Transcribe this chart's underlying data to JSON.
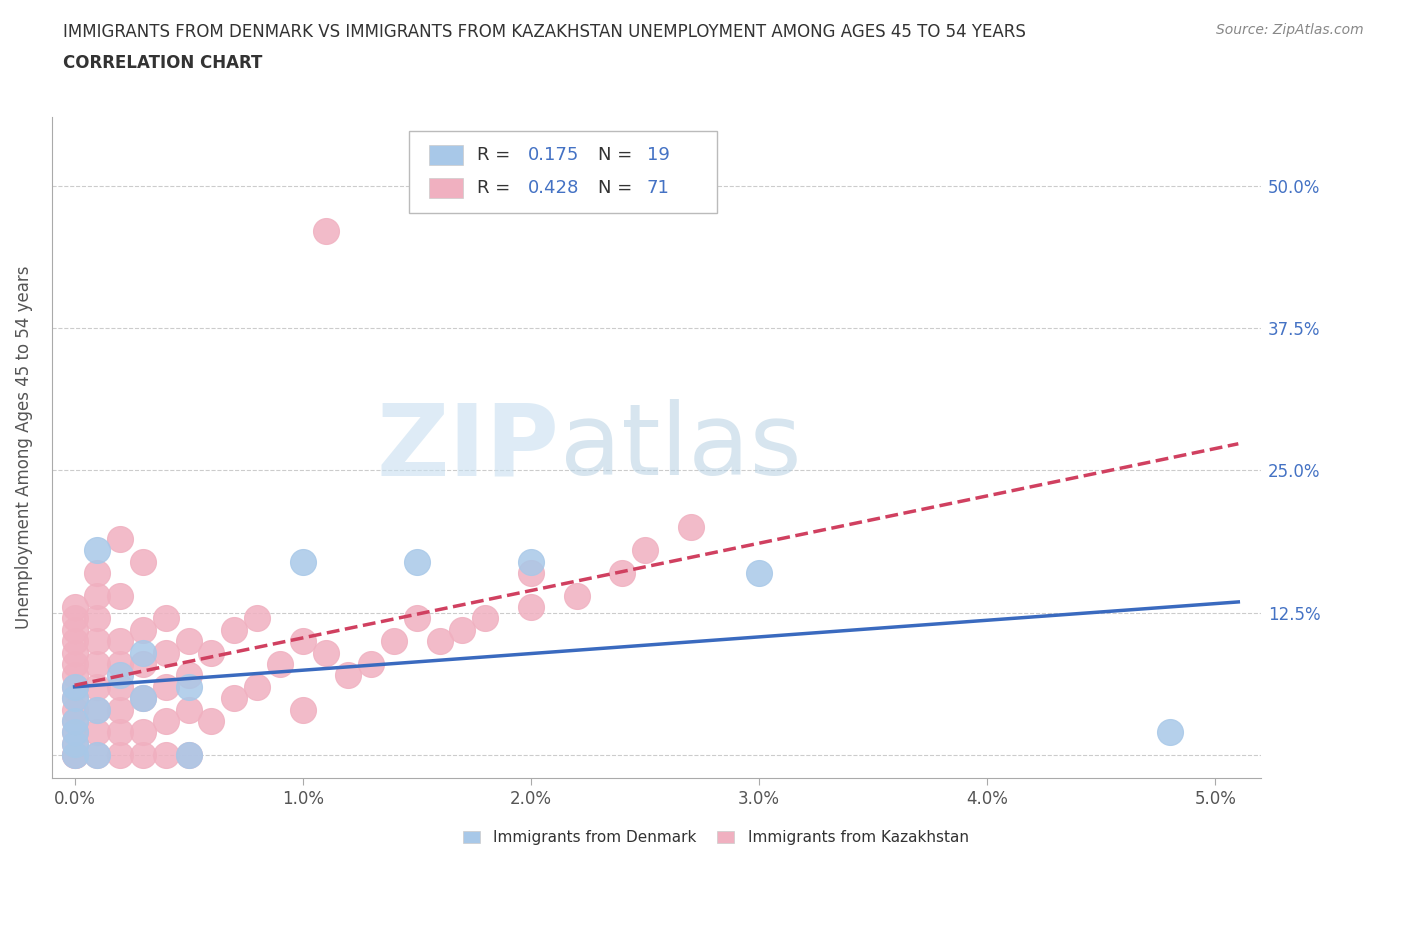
{
  "title_line1": "IMMIGRANTS FROM DENMARK VS IMMIGRANTS FROM KAZAKHSTAN UNEMPLOYMENT AMONG AGES 45 TO 54 YEARS",
  "title_line2": "CORRELATION CHART",
  "source_text": "Source: ZipAtlas.com",
  "ylabel": "Unemployment Among Ages 45 to 54 years",
  "xlim": [
    -0.001,
    0.052
  ],
  "ylim": [
    -0.02,
    0.56
  ],
  "x_ticks": [
    0.0,
    0.01,
    0.02,
    0.03,
    0.04,
    0.05
  ],
  "x_tick_labels": [
    "0.0%",
    "1.0%",
    "2.0%",
    "3.0%",
    "4.0%",
    "5.0%"
  ],
  "y_tick_positions": [
    0.0,
    0.125,
    0.25,
    0.375,
    0.5
  ],
  "y_tick_labels": [
    "",
    "12.5%",
    "25.0%",
    "37.5%",
    "50.0%"
  ],
  "denmark_R": 0.175,
  "denmark_N": 19,
  "kazakhstan_R": 0.428,
  "kazakhstan_N": 71,
  "denmark_color": "#a8c8e8",
  "kazakhstan_color": "#f0b0c0",
  "denmark_line_color": "#3a6abf",
  "kazakhstan_line_color": "#d04060",
  "watermark_zip": "ZIP",
  "watermark_atlas": "atlas",
  "denmark_scatter_x": [
    0.0,
    0.0,
    0.0,
    0.0,
    0.0,
    0.0,
    0.001,
    0.001,
    0.001,
    0.002,
    0.003,
    0.003,
    0.005,
    0.005,
    0.01,
    0.015,
    0.02,
    0.03,
    0.048
  ],
  "denmark_scatter_y": [
    0.0,
    0.01,
    0.02,
    0.03,
    0.05,
    0.06,
    0.0,
    0.04,
    0.18,
    0.07,
    0.05,
    0.09,
    0.0,
    0.06,
    0.17,
    0.17,
    0.17,
    0.16,
    0.02
  ],
  "kazakhstan_scatter_x": [
    0.0,
    0.0,
    0.0,
    0.0,
    0.0,
    0.0,
    0.0,
    0.0,
    0.0,
    0.0,
    0.0,
    0.0,
    0.0,
    0.0,
    0.0,
    0.001,
    0.001,
    0.001,
    0.001,
    0.001,
    0.001,
    0.001,
    0.001,
    0.001,
    0.002,
    0.002,
    0.002,
    0.002,
    0.002,
    0.002,
    0.002,
    0.002,
    0.003,
    0.003,
    0.003,
    0.003,
    0.003,
    0.003,
    0.004,
    0.004,
    0.004,
    0.004,
    0.004,
    0.005,
    0.005,
    0.005,
    0.005,
    0.006,
    0.006,
    0.007,
    0.007,
    0.008,
    0.008,
    0.009,
    0.01,
    0.01,
    0.011,
    0.011,
    0.012,
    0.013,
    0.014,
    0.015,
    0.016,
    0.017,
    0.018,
    0.02,
    0.02,
    0.022,
    0.024,
    0.025,
    0.027
  ],
  "kazakhstan_scatter_y": [
    0.0,
    0.0,
    0.01,
    0.02,
    0.03,
    0.04,
    0.05,
    0.06,
    0.07,
    0.08,
    0.09,
    0.1,
    0.11,
    0.12,
    0.13,
    0.0,
    0.02,
    0.04,
    0.06,
    0.08,
    0.1,
    0.12,
    0.14,
    0.16,
    0.0,
    0.02,
    0.04,
    0.06,
    0.08,
    0.1,
    0.14,
    0.19,
    0.0,
    0.02,
    0.05,
    0.08,
    0.11,
    0.17,
    0.0,
    0.03,
    0.06,
    0.09,
    0.12,
    0.0,
    0.04,
    0.07,
    0.1,
    0.03,
    0.09,
    0.05,
    0.11,
    0.06,
    0.12,
    0.08,
    0.04,
    0.1,
    0.46,
    0.09,
    0.07,
    0.08,
    0.1,
    0.12,
    0.1,
    0.11,
    0.12,
    0.13,
    0.16,
    0.14,
    0.16,
    0.18,
    0.2
  ]
}
